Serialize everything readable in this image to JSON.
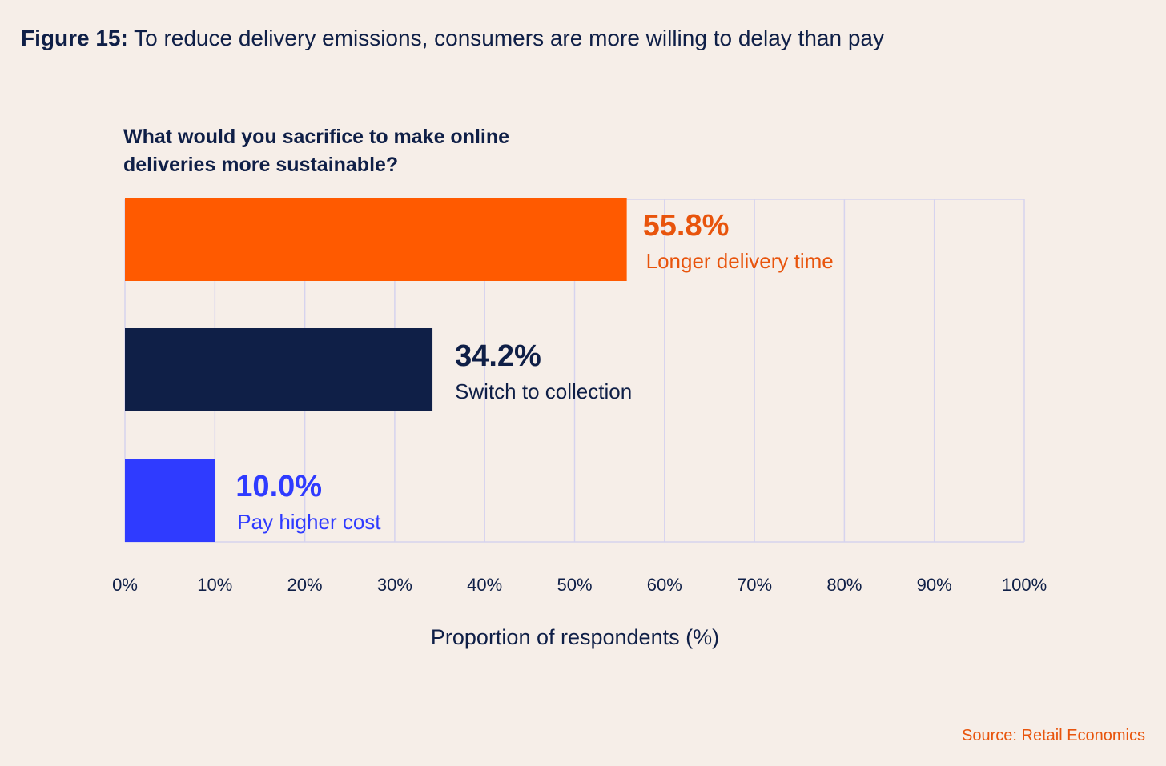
{
  "figure": {
    "label": "Figure 15",
    "separator": ":",
    "title": " To reduce delivery emissions, consumers are more willing to delay than pay"
  },
  "source": "Source: Retail Economics",
  "colors": {
    "background": "#f6eee8",
    "text": "#0f1f47",
    "grid": "#d6d3ee",
    "orange": "#ff5a00",
    "navy": "#0f1f47",
    "blue": "#2f3bff"
  },
  "chart_data": {
    "type": "bar",
    "orientation": "horizontal",
    "title": "What would you sacrifice to make online deliveries more sustainable?",
    "xlabel": "Proportion of respondents (%)",
    "ylabel": "",
    "xlim": [
      0,
      100
    ],
    "xticks": [
      0,
      10,
      20,
      30,
      40,
      50,
      60,
      70,
      80,
      90,
      100
    ],
    "xtick_labels": [
      "0%",
      "10%",
      "20%",
      "30%",
      "40%",
      "50%",
      "60%",
      "70%",
      "80%",
      "90%",
      "100%"
    ],
    "grid": true,
    "categories": [
      "Longer delivery time",
      "Switch to collection",
      "Pay higher cost"
    ],
    "values": [
      55.8,
      34.2,
      10.0
    ],
    "value_labels": [
      "55.8%",
      "34.2%",
      "10.0%"
    ],
    "bar_colors": [
      "#ff5a00",
      "#0f1f47",
      "#2f3bff"
    ],
    "label_colors": [
      "#e8540c",
      "#0f1f47",
      "#2f3bff"
    ]
  }
}
